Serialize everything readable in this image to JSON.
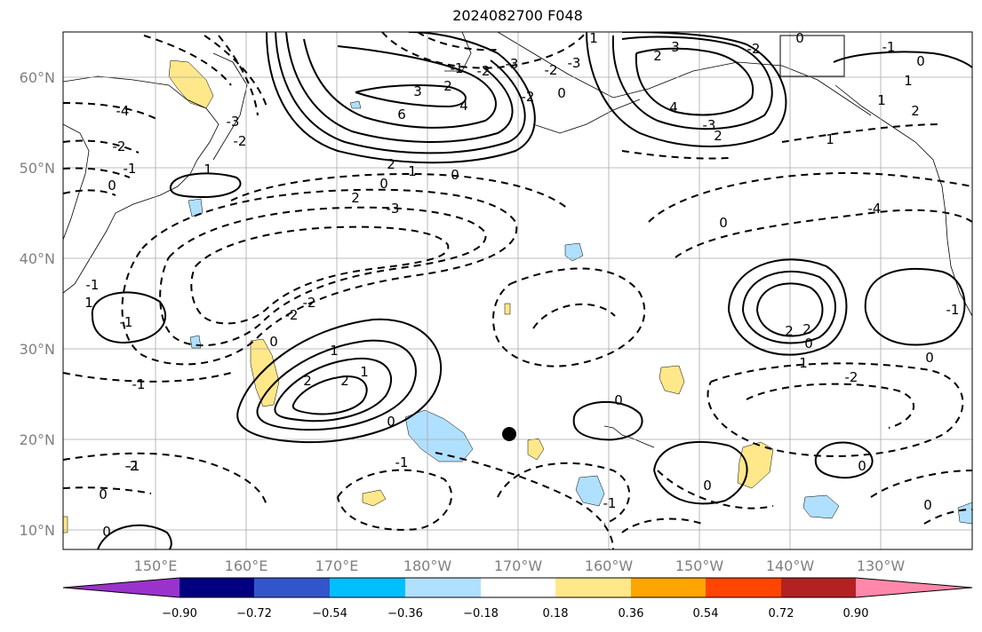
{
  "title": "2024082700 F048",
  "lat_labels": [
    "60°N",
    "50°N",
    "40°N",
    "30°N",
    "20°N",
    "10°N"
  ],
  "lon_labels": [
    "150°E",
    "160°E",
    "170°E",
    "180°W",
    "170°W",
    "160°W",
    "150°W",
    "140°W",
    "130°W"
  ],
  "colorbar": {
    "tick_labels": [
      "−0.90",
      "−0.72",
      "−0.54",
      "−0.36",
      "−0.18",
      "0.18",
      "0.36",
      "0.54",
      "0.72",
      "0.90"
    ],
    "colors": [
      "#9933cc",
      "#000080",
      "#3355cc",
      "#00bfff",
      "#b0e0ff",
      "#ffffff",
      "#ffe88a",
      "#ffa500",
      "#ff4500",
      "#b22222",
      "#ff88aa"
    ]
  },
  "contour_labels": [
    "-4",
    "-2",
    "-1",
    "0",
    "-3",
    "-2",
    "-3",
    "-2",
    "-1",
    "-2",
    "-3",
    "0",
    "1",
    "3",
    "2",
    "4",
    "6",
    "2",
    "1",
    "0",
    "0",
    "2",
    "-3",
    "-2",
    "0",
    "-1",
    "-2",
    "2",
    "-3",
    "4",
    "3",
    "2",
    "0",
    "1",
    "1",
    "2",
    "-4",
    "0",
    "1",
    "-1",
    "1",
    "-1",
    "-2",
    "-2",
    "-1",
    "0",
    "1",
    "2",
    "2",
    "1",
    "-1",
    "0",
    "-1",
    "-2",
    "0",
    "0",
    "0",
    "0",
    "0",
    "0",
    "-1",
    "2",
    "2",
    "0",
    "1",
    "-2",
    "0",
    "-1",
    "1"
  ],
  "marker": "tropical-cyclone-position"
}
